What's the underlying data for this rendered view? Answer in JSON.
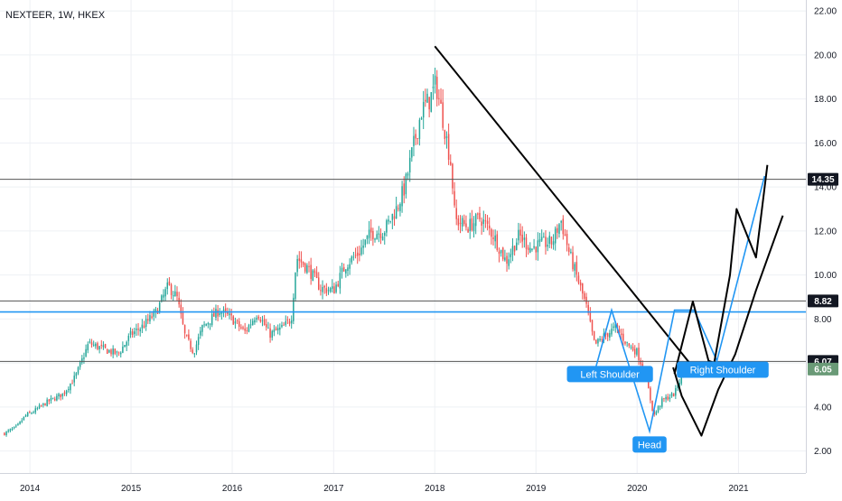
{
  "header": {
    "symbol_title": "NEXTEER, 1W, HKEX"
  },
  "colors": {
    "up_candle": "#26a69a",
    "down_candle": "#ef5350",
    "blue_drawing": "#2196f3",
    "black_drawing": "#000000",
    "support_line": "#555555",
    "grid": "#eef0f4",
    "last_price_bg": "#6a9a77"
  },
  "chart_data": {
    "type": "candlestick",
    "title": "NEXTEER, 1W, HKEX",
    "x_axis": {
      "type": "date",
      "range": [
        "2013-09-15",
        "2021-09-01"
      ],
      "tick_labels": [
        "2014",
        "2015",
        "2016",
        "2017",
        "2018",
        "2019",
        "2020",
        "2021"
      ]
    },
    "y_axis": {
      "range": [
        1.0,
        22.5
      ],
      "tick_labels": [
        "2.00",
        "4.00",
        "6.00",
        "8.00",
        "10.00",
        "12.00",
        "14.00",
        "16.00",
        "18.00",
        "20.00",
        "22.00"
      ],
      "position": "right"
    },
    "grid": true,
    "price_keypoints": [
      [
        "2013-10-01",
        2.8
      ],
      [
        "2013-11-15",
        3.1
      ],
      [
        "2013-12-15",
        3.6
      ],
      [
        "2014-01-15",
        3.8
      ],
      [
        "2014-03-01",
        4.2
      ],
      [
        "2014-05-01",
        4.6
      ],
      [
        "2014-06-15",
        5.4
      ],
      [
        "2014-08-01",
        6.9
      ],
      [
        "2014-10-01",
        6.6
      ],
      [
        "2014-11-15",
        6.4
      ],
      [
        "2015-01-01",
        7.3
      ],
      [
        "2015-02-15",
        7.7
      ],
      [
        "2015-04-01",
        8.3
      ],
      [
        "2015-05-15",
        9.5
      ],
      [
        "2015-06-15",
        9.0
      ],
      [
        "2015-07-15",
        7.2
      ],
      [
        "2015-08-15",
        6.5
      ],
      [
        "2015-09-15",
        7.6
      ],
      [
        "2015-11-15",
        8.4
      ],
      [
        "2016-01-01",
        8.0
      ],
      [
        "2016-02-15",
        7.4
      ],
      [
        "2016-04-01",
        8.3
      ],
      [
        "2016-05-15",
        7.3
      ],
      [
        "2016-07-01",
        7.6
      ],
      [
        "2016-08-01",
        8.0
      ],
      [
        "2016-08-20",
        10.8
      ],
      [
        "2016-10-01",
        10.3
      ],
      [
        "2016-11-15",
        9.4
      ],
      [
        "2017-01-01",
        9.3
      ],
      [
        "2017-02-15",
        10.5
      ],
      [
        "2017-04-01",
        11.0
      ],
      [
        "2017-05-15",
        11.9
      ],
      [
        "2017-07-01",
        12.0
      ],
      [
        "2017-08-15",
        13.0
      ],
      [
        "2017-09-15",
        14.0
      ],
      [
        "2017-10-15",
        15.8
      ],
      [
        "2017-11-15",
        17.5
      ],
      [
        "2017-12-15",
        18.0
      ],
      [
        "2018-01-05",
        18.7
      ],
      [
        "2018-02-01",
        17.0
      ],
      [
        "2018-03-01",
        15.0
      ],
      [
        "2018-03-15",
        12.5
      ],
      [
        "2018-05-01",
        12.2
      ],
      [
        "2018-06-15",
        12.6
      ],
      [
        "2018-08-01",
        11.8
      ],
      [
        "2018-09-15",
        10.6
      ],
      [
        "2018-11-01",
        11.8
      ],
      [
        "2018-12-15",
        11.2
      ],
      [
        "2019-01-15",
        11.4
      ],
      [
        "2019-03-01",
        11.5
      ],
      [
        "2019-04-01",
        12.5
      ],
      [
        "2019-05-01",
        11.0
      ],
      [
        "2019-06-01",
        9.8
      ],
      [
        "2019-07-01",
        8.6
      ],
      [
        "2019-08-01",
        6.8
      ],
      [
        "2019-09-01",
        7.2
      ],
      [
        "2019-10-15",
        7.6
      ],
      [
        "2019-12-01",
        6.8
      ],
      [
        "2020-01-01",
        6.5
      ],
      [
        "2020-02-01",
        5.4
      ],
      [
        "2020-03-01",
        3.6
      ],
      [
        "2020-04-01",
        4.3
      ],
      [
        "2020-05-15",
        4.6
      ],
      [
        "2020-06-15",
        5.6
      ],
      [
        "2020-07-05",
        6.05
      ]
    ],
    "horizontal_levels": [
      {
        "price": 14.35,
        "label": "14.35",
        "color": "#555555"
      },
      {
        "price": 8.82,
        "label": "8.82",
        "color": "#555555"
      },
      {
        "price": 8.32,
        "color": "#2196f3"
      },
      {
        "price": 6.07,
        "label": "6.07",
        "color": "#555555"
      }
    ],
    "last_price": {
      "value": 6.05,
      "label": "6.05"
    },
    "trendlines": [
      {
        "name": "descending-trendline",
        "color": "#000000",
        "points": [
          [
            "2018-01-01",
            20.4
          ],
          [
            "2020-07-15",
            5.9
          ]
        ]
      }
    ],
    "blue_pattern_path": [
      [
        "2019-08-05",
        5.8
      ],
      [
        "2019-10-01",
        8.4
      ],
      [
        "2020-02-15",
        2.9
      ],
      [
        "2020-05-15",
        8.4
      ],
      [
        "2020-07-25",
        8.4
      ],
      [
        "2020-10-15",
        6.1
      ],
      [
        "2021-04-05",
        14.5
      ]
    ],
    "black_projection_paths": [
      [
        [
          "2020-05-15",
          5.5
        ],
        [
          "2020-07-20",
          8.8
        ],
        [
          "2020-09-15",
          6.1
        ],
        [
          "2020-10-05",
          6.0
        ],
        [
          "2020-12-01",
          10.0
        ],
        [
          "2020-12-25",
          13.0
        ],
        [
          "2021-03-05",
          10.8
        ],
        [
          "2021-04-15",
          15.0
        ]
      ],
      [
        [
          "2020-05-10",
          5.8
        ],
        [
          "2020-06-10",
          4.5
        ],
        [
          "2020-08-20",
          2.7
        ],
        [
          "2020-10-20",
          4.8
        ],
        [
          "2020-12-20",
          6.4
        ],
        [
          "2021-03-05",
          9.3
        ],
        [
          "2021-06-10",
          12.7
        ]
      ]
    ],
    "annotations": [
      {
        "name": "left-shoulder-label",
        "text": "Left Shoulder",
        "date": "2019-09-25",
        "price": 5.5
      },
      {
        "name": "head-label",
        "text": "Head",
        "date": "2020-02-15",
        "price": 2.3
      },
      {
        "name": "right-shoulder-label",
        "text": "Right Shoulder",
        "date": "2020-11-05",
        "price": 5.7
      }
    ]
  }
}
